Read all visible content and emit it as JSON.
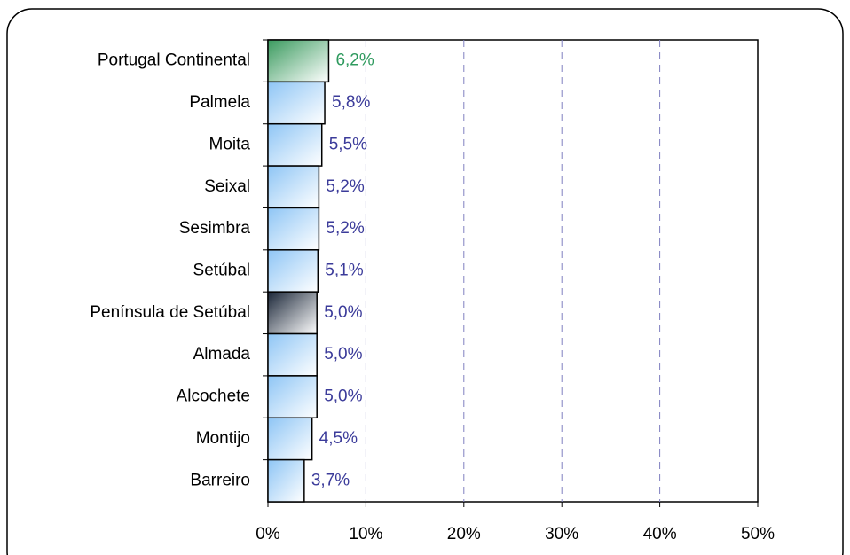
{
  "chart_data": {
    "type": "bar",
    "orientation": "horizontal",
    "categories": [
      "Portugal Continental",
      "Palmela",
      "Moita",
      "Seixal",
      "Sesimbra",
      "Setúbal",
      "Península de Setúbal",
      "Almada",
      "Alcochete",
      "Montijo",
      "Barreiro"
    ],
    "values": [
      6.2,
      5.8,
      5.5,
      5.2,
      5.2,
      5.1,
      5.0,
      5.0,
      5.0,
      4.5,
      3.7
    ],
    "value_labels": [
      "6,2%",
      "5,8%",
      "5,5%",
      "5,2%",
      "5,2%",
      "5,1%",
      "5,0%",
      "5,0%",
      "5,0%",
      "4,5%",
      "3,7%"
    ],
    "colors": [
      "#3a9a5e",
      "#8ec5f5",
      "#8ec5f5",
      "#8ec5f5",
      "#8ec5f5",
      "#8ec5f5",
      "#1a2638",
      "#8ec5f5",
      "#8ec5f5",
      "#8ec5f5",
      "#8ec5f5"
    ],
    "label_colors": [
      "#2e9a5e",
      "#3b3b9a",
      "#3b3b9a",
      "#3b3b9a",
      "#3b3b9a",
      "#3b3b9a",
      "#3b3b9a",
      "#3b3b9a",
      "#3b3b9a",
      "#3b3b9a",
      "#3b3b9a"
    ],
    "xlim": [
      0,
      50
    ],
    "xticks": [
      {
        "value": 0,
        "label": "0%"
      },
      {
        "value": 10,
        "label": "10%"
      },
      {
        "value": 20,
        "label": "20%"
      },
      {
        "value": 30,
        "label": "30%"
      },
      {
        "value": 40,
        "label": "40%"
      },
      {
        "value": 50,
        "label": "50%"
      }
    ],
    "grid": true,
    "grid_color": "#8080c0"
  }
}
